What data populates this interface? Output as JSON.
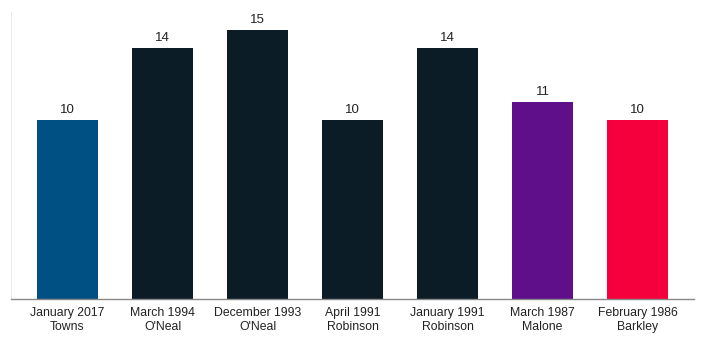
{
  "chart_data": {
    "type": "bar",
    "categories": [
      "January 2017\nTowns",
      "March 1994\nO'Neal",
      "December 1993\nO'Neal",
      "April 1991\nRobinson",
      "January 1991\nRobinson",
      "March 1987\nMalone",
      "February 1986\nBarkley"
    ],
    "values": [
      10,
      14,
      15,
      10,
      14,
      11,
      10
    ],
    "colors": [
      "#005083",
      "#0b1c26",
      "#0b1c26",
      "#0b1c26",
      "#0b1c26",
      "#5f0f8a",
      "#f5003d"
    ],
    "ylim": [
      0,
      16
    ],
    "yticks": [],
    "grid": false,
    "data_labels": true,
    "tick_labels": "x"
  }
}
